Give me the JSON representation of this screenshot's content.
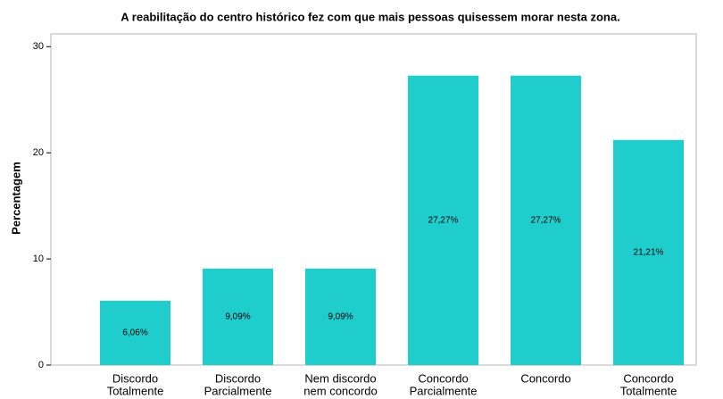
{
  "chart_data": {
    "type": "bar",
    "title": "A reabilitação do centro histórico fez com que mais pessoas quisessem morar nesta zona.",
    "ylabel": "Percentagem",
    "categories": [
      [
        "Discordo",
        "Totalmente"
      ],
      [
        "Discordo",
        "Parcialmente"
      ],
      [
        "Nem discordo",
        "nem concordo"
      ],
      [
        "Concordo",
        "Parcialmente"
      ],
      [
        "Concordo"
      ],
      [
        "Concordo",
        "Totalmente"
      ]
    ],
    "values": [
      6.06,
      9.09,
      9.09,
      27.27,
      27.27,
      21.21
    ],
    "value_labels": [
      "6,06%",
      "9,09%",
      "9,09%",
      "27,27%",
      "27,27%",
      "21,21%"
    ],
    "color": "#1ecdcc",
    "ylim": [
      0,
      31.2
    ],
    "yticks": [
      0,
      10,
      20,
      30
    ],
    "grid": false
  }
}
